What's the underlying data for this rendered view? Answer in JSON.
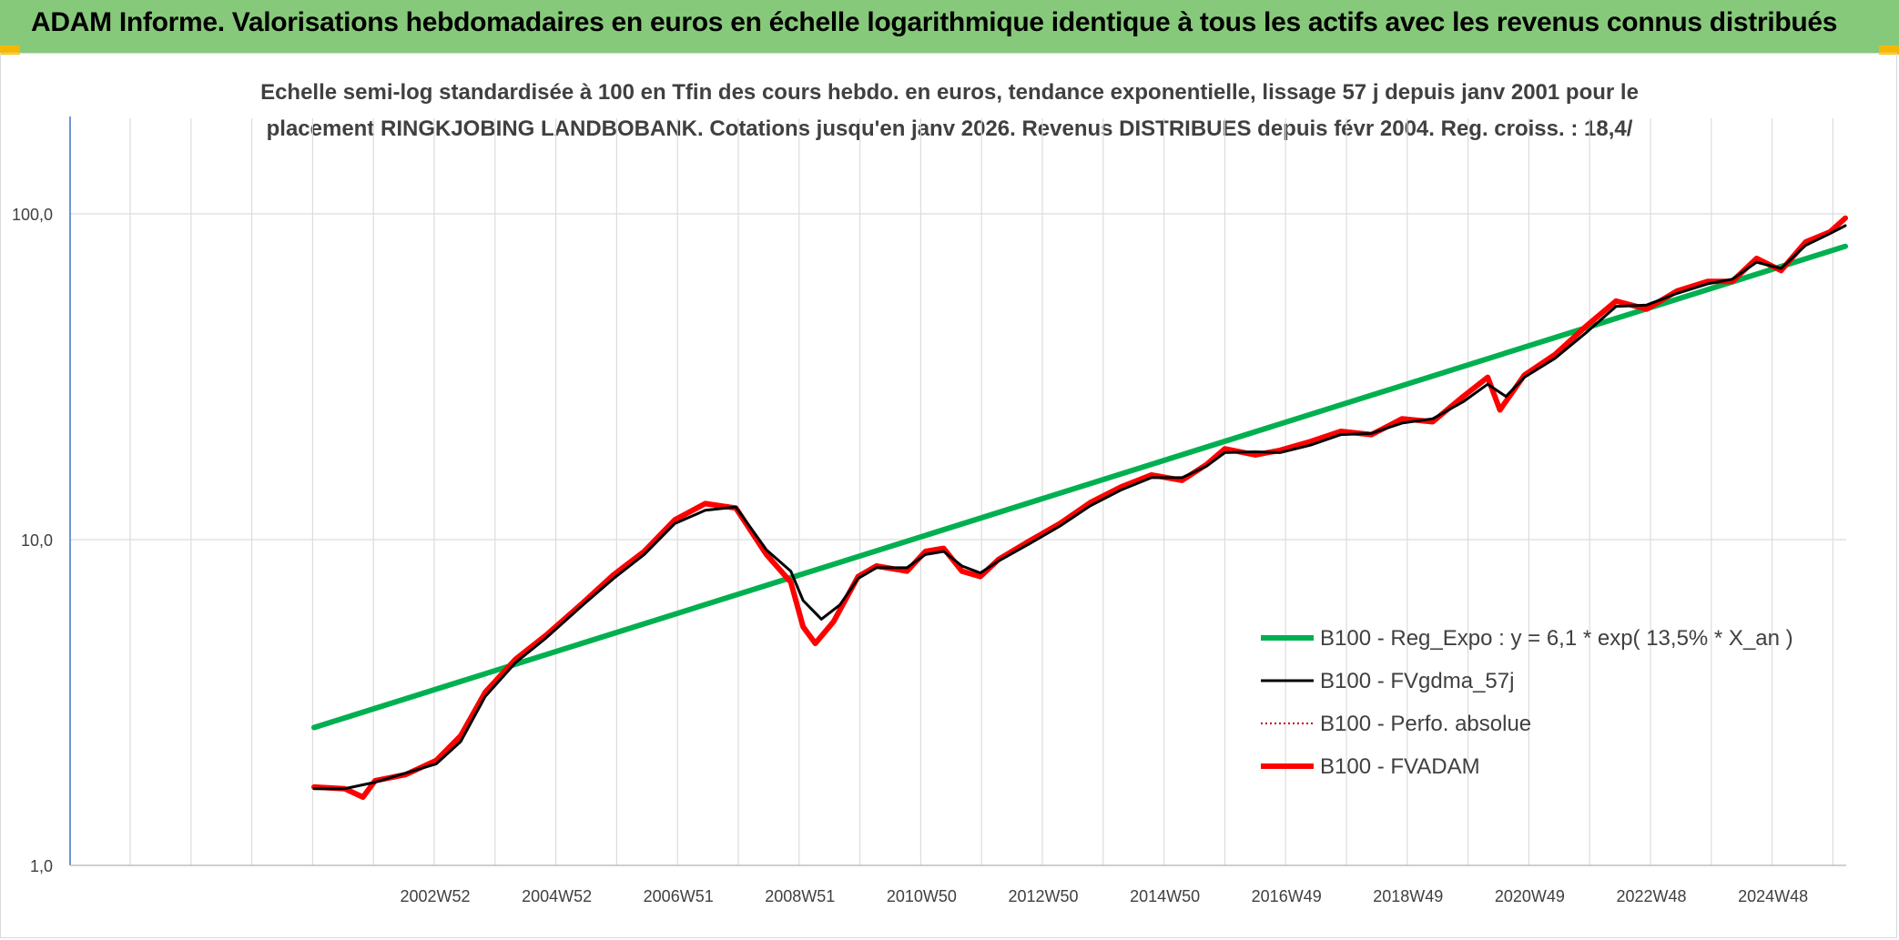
{
  "header": {
    "title": "ADAM Informe. Valorisations hebdomadaires en euros en échelle logarithmique identique à tous les actifs avec les revenus connus distribués"
  },
  "chart_data": {
    "type": "line",
    "title_line1": "Echelle semi-log standardisée à 100 en Tfin des cours hebdo. en euros, tendance exponentielle, lissage 57 j depuis janv 2001 pour le",
    "title_line2": "placement RINGKJOBING LANDBOBANK. Cotations jusqu'en janv 2026. Revenus DISTRIBUES depuis févr 2004. Reg. croiss. : 18,4/",
    "y_scale": "log",
    "ylim": [
      1,
      100
    ],
    "y_ticks": [
      "1,0",
      "10,0",
      "100,0"
    ],
    "x_tick_labels": [
      "2002W52",
      "2004W52",
      "2006W51",
      "2008W51",
      "2010W50",
      "2012W50",
      "2014W50",
      "2016W49",
      "2018W49",
      "2020W49",
      "2022W48",
      "2024W48"
    ],
    "x_range": [
      2001.0,
      2026.05
    ],
    "legend_position": "bottom-right",
    "series": [
      {
        "name": "B100 - Reg_Expo : y = 6,1 * exp( 13,5% *  X_an )",
        "color": "#00b050",
        "style": "solid-thick",
        "points": [
          [
            2001.0,
            2.65
          ],
          [
            2026.05,
            79.5
          ]
        ]
      },
      {
        "name": "B100 - FVgdma_57j",
        "color": "#000000",
        "style": "solid",
        "points": [
          [
            2001.0,
            1.72
          ],
          [
            2001.5,
            1.72
          ],
          [
            2002.0,
            1.8
          ],
          [
            2002.5,
            1.92
          ],
          [
            2003.0,
            2.05
          ],
          [
            2003.4,
            2.4
          ],
          [
            2003.8,
            3.3
          ],
          [
            2004.3,
            4.2
          ],
          [
            2004.8,
            5.0
          ],
          [
            2005.4,
            6.3
          ],
          [
            2005.9,
            7.6
          ],
          [
            2006.4,
            9.0
          ],
          [
            2006.9,
            11.2
          ],
          [
            2007.4,
            12.3
          ],
          [
            2007.9,
            12.6
          ],
          [
            2008.4,
            9.3
          ],
          [
            2008.8,
            8.0
          ],
          [
            2009.0,
            6.5
          ],
          [
            2009.3,
            5.7
          ],
          [
            2009.6,
            6.3
          ],
          [
            2009.9,
            7.6
          ],
          [
            2010.2,
            8.2
          ],
          [
            2010.7,
            8.2
          ],
          [
            2011.0,
            9.0
          ],
          [
            2011.3,
            9.2
          ],
          [
            2011.6,
            8.3
          ],
          [
            2011.9,
            7.9
          ],
          [
            2012.2,
            8.6
          ],
          [
            2012.7,
            9.7
          ],
          [
            2013.2,
            11.0
          ],
          [
            2013.7,
            12.7
          ],
          [
            2014.2,
            14.2
          ],
          [
            2014.7,
            15.5
          ],
          [
            2015.2,
            15.5
          ],
          [
            2015.6,
            16.8
          ],
          [
            2015.9,
            18.5
          ],
          [
            2016.4,
            18.6
          ],
          [
            2016.8,
            18.5
          ],
          [
            2017.3,
            19.5
          ],
          [
            2017.8,
            21.0
          ],
          [
            2018.3,
            21.2
          ],
          [
            2018.8,
            22.8
          ],
          [
            2019.3,
            23.5
          ],
          [
            2019.8,
            26.5
          ],
          [
            2020.2,
            30.0
          ],
          [
            2020.5,
            27.5
          ],
          [
            2020.8,
            31.5
          ],
          [
            2021.3,
            36.0
          ],
          [
            2021.8,
            43.0
          ],
          [
            2022.3,
            52.0
          ],
          [
            2022.8,
            52.5
          ],
          [
            2023.3,
            57.0
          ],
          [
            2023.8,
            61.0
          ],
          [
            2024.2,
            63.0
          ],
          [
            2024.6,
            71.0
          ],
          [
            2025.0,
            68.0
          ],
          [
            2025.4,
            80.0
          ],
          [
            2025.8,
            87.0
          ],
          [
            2026.05,
            92.0
          ]
        ]
      },
      {
        "name": "B100 - Perfo. absolue",
        "color": "#c00000",
        "style": "dotted",
        "points": [
          [
            2001.0,
            1.74
          ],
          [
            2001.5,
            1.72
          ],
          [
            2001.8,
            1.62
          ],
          [
            2002.0,
            1.82
          ],
          [
            2002.5,
            1.9
          ],
          [
            2003.0,
            2.1
          ],
          [
            2003.4,
            2.5
          ],
          [
            2003.8,
            3.4
          ],
          [
            2004.3,
            4.3
          ],
          [
            2004.8,
            5.1
          ],
          [
            2005.4,
            6.4
          ],
          [
            2005.9,
            7.8
          ],
          [
            2006.4,
            9.2
          ],
          [
            2006.9,
            11.5
          ],
          [
            2007.4,
            12.9
          ],
          [
            2007.9,
            12.5
          ],
          [
            2008.4,
            9.0
          ],
          [
            2008.8,
            7.4
          ],
          [
            2009.0,
            5.4
          ],
          [
            2009.2,
            4.8
          ],
          [
            2009.5,
            5.6
          ],
          [
            2009.9,
            7.7
          ],
          [
            2010.2,
            8.3
          ],
          [
            2010.7,
            8.0
          ],
          [
            2011.0,
            9.2
          ],
          [
            2011.3,
            9.4
          ],
          [
            2011.6,
            8.0
          ],
          [
            2011.9,
            7.7
          ],
          [
            2012.2,
            8.7
          ],
          [
            2012.7,
            9.9
          ],
          [
            2013.2,
            11.2
          ],
          [
            2013.7,
            13.0
          ],
          [
            2014.2,
            14.5
          ],
          [
            2014.7,
            15.8
          ],
          [
            2015.2,
            15.2
          ],
          [
            2015.6,
            17.0
          ],
          [
            2015.9,
            19.0
          ],
          [
            2016.4,
            18.2
          ],
          [
            2016.8,
            18.8
          ],
          [
            2017.3,
            20.0
          ],
          [
            2017.8,
            21.5
          ],
          [
            2018.3,
            21.0
          ],
          [
            2018.8,
            23.5
          ],
          [
            2019.3,
            23.0
          ],
          [
            2019.8,
            27.5
          ],
          [
            2020.2,
            31.5
          ],
          [
            2020.4,
            25.0
          ],
          [
            2020.8,
            32.0
          ],
          [
            2021.3,
            37.0
          ],
          [
            2021.8,
            45.0
          ],
          [
            2022.3,
            54.0
          ],
          [
            2022.8,
            51.0
          ],
          [
            2023.3,
            58.0
          ],
          [
            2023.8,
            62.0
          ],
          [
            2024.2,
            62.0
          ],
          [
            2024.6,
            73.0
          ],
          [
            2025.0,
            67.0
          ],
          [
            2025.4,
            82.0
          ],
          [
            2025.8,
            88.0
          ],
          [
            2026.05,
            97.0
          ]
        ]
      },
      {
        "name": "B100 - FVADAM",
        "color": "#ff0000",
        "style": "solid-thick",
        "points": [
          [
            2001.0,
            1.74
          ],
          [
            2001.5,
            1.72
          ],
          [
            2001.8,
            1.62
          ],
          [
            2002.0,
            1.82
          ],
          [
            2002.5,
            1.9
          ],
          [
            2003.0,
            2.1
          ],
          [
            2003.4,
            2.5
          ],
          [
            2003.8,
            3.4
          ],
          [
            2004.3,
            4.3
          ],
          [
            2004.8,
            5.1
          ],
          [
            2005.4,
            6.4
          ],
          [
            2005.9,
            7.8
          ],
          [
            2006.4,
            9.2
          ],
          [
            2006.9,
            11.5
          ],
          [
            2007.4,
            12.9
          ],
          [
            2007.9,
            12.5
          ],
          [
            2008.4,
            9.0
          ],
          [
            2008.8,
            7.4
          ],
          [
            2009.0,
            5.4
          ],
          [
            2009.2,
            4.8
          ],
          [
            2009.5,
            5.6
          ],
          [
            2009.9,
            7.7
          ],
          [
            2010.2,
            8.3
          ],
          [
            2010.7,
            8.0
          ],
          [
            2011.0,
            9.2
          ],
          [
            2011.3,
            9.4
          ],
          [
            2011.6,
            8.0
          ],
          [
            2011.9,
            7.7
          ],
          [
            2012.2,
            8.7
          ],
          [
            2012.7,
            9.9
          ],
          [
            2013.2,
            11.2
          ],
          [
            2013.7,
            13.0
          ],
          [
            2014.2,
            14.5
          ],
          [
            2014.7,
            15.8
          ],
          [
            2015.2,
            15.2
          ],
          [
            2015.6,
            17.0
          ],
          [
            2015.9,
            19.0
          ],
          [
            2016.4,
            18.2
          ],
          [
            2016.8,
            18.8
          ],
          [
            2017.3,
            20.0
          ],
          [
            2017.8,
            21.5
          ],
          [
            2018.3,
            21.0
          ],
          [
            2018.8,
            23.5
          ],
          [
            2019.3,
            23.0
          ],
          [
            2019.8,
            27.5
          ],
          [
            2020.2,
            31.5
          ],
          [
            2020.4,
            25.0
          ],
          [
            2020.8,
            32.0
          ],
          [
            2021.3,
            37.0
          ],
          [
            2021.8,
            45.0
          ],
          [
            2022.3,
            54.0
          ],
          [
            2022.8,
            51.0
          ],
          [
            2023.3,
            58.0
          ],
          [
            2023.8,
            62.0
          ],
          [
            2024.2,
            62.0
          ],
          [
            2024.6,
            73.0
          ],
          [
            2025.0,
            67.0
          ],
          [
            2025.4,
            82.0
          ],
          [
            2025.8,
            88.0
          ],
          [
            2026.05,
            97.0
          ]
        ]
      }
    ]
  }
}
